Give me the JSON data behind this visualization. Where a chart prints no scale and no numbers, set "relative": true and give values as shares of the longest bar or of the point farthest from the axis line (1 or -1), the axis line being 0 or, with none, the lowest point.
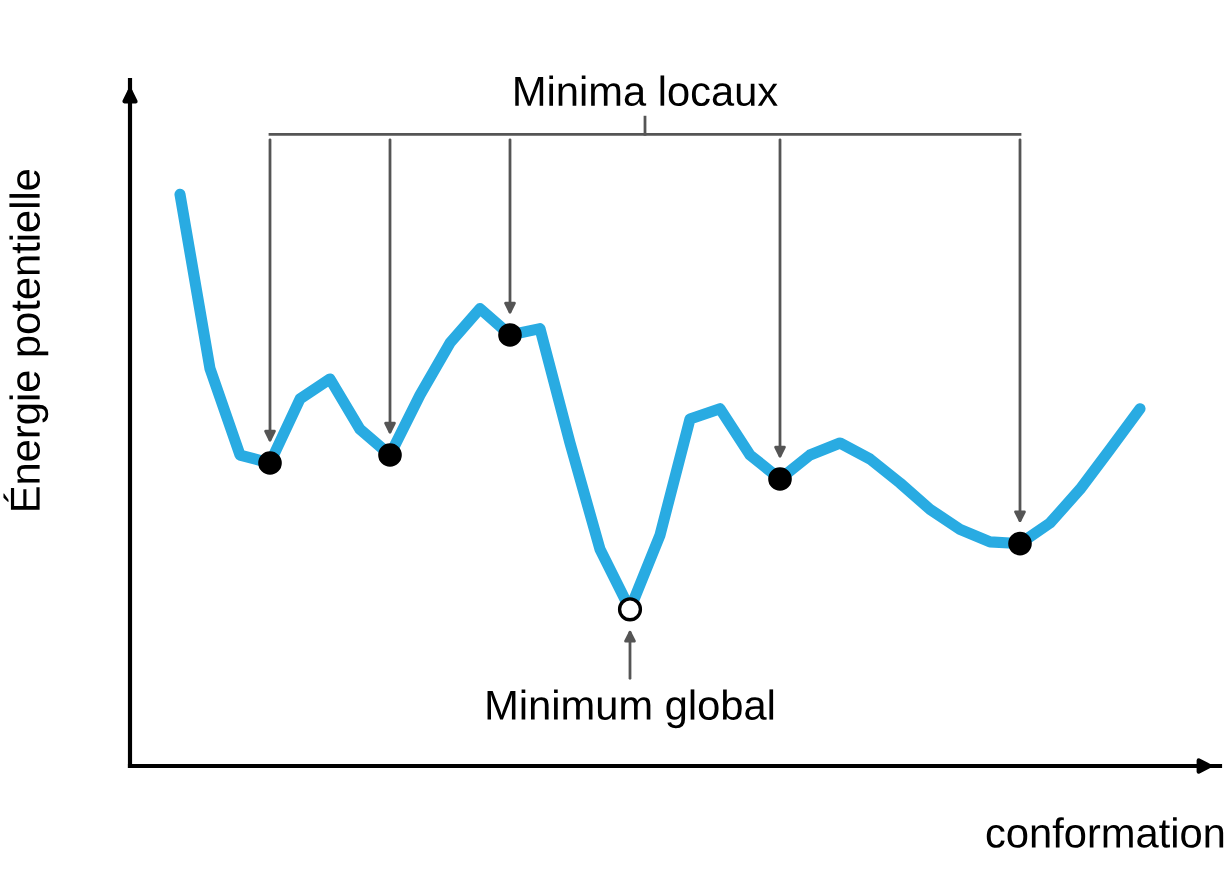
{
  "chart_data": {
    "type": "line",
    "relative": true,
    "ylabel": "Énergie potentielle",
    "xlabel": "conformation",
    "categories": [
      null,
      null,
      null,
      null,
      null,
      null,
      null,
      null,
      null,
      null,
      null,
      null,
      null,
      null,
      null,
      null,
      null,
      null,
      null,
      null,
      null,
      null,
      null,
      null,
      null,
      null,
      null,
      null,
      null,
      null,
      null,
      null,
      null
    ],
    "series": [
      {
        "color": "#29abe2",
        "values": [
          1.0,
          0.695,
          0.544,
          0.53,
          0.642,
          0.677,
          0.589,
          0.544,
          0.649,
          0.74,
          0.8,
          0.754,
          0.765,
          0.565,
          0.379,
          0.274,
          0.404,
          0.607,
          0.625,
          0.544,
          0.502,
          0.544,
          0.565,
          0.537,
          0.495,
          0.449,
          0.414,
          0.392,
          0.389,
          0.425,
          0.484,
          0.554,
          0.625
        ]
      }
    ],
    "annotations": [
      "Minima locaux",
      "Minimum global"
    ]
  }
}
